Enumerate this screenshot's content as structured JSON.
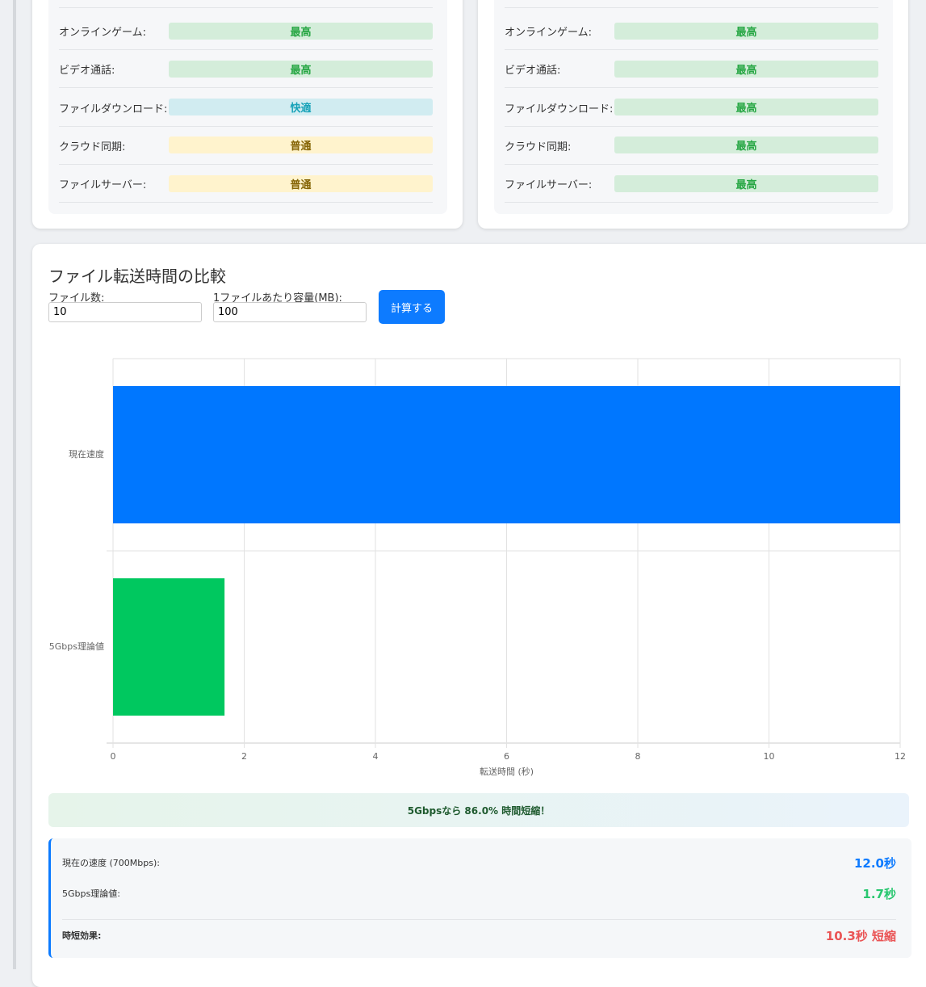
{
  "cards": [
    {
      "rows": [
        {
          "label": "オンラインゲーム:",
          "rating": "最高",
          "color": "#28a745",
          "background": "#d4edda"
        },
        {
          "label": "ビデオ通話:",
          "rating": "最高",
          "color": "#28a745",
          "background": "#d4edda"
        },
        {
          "label": "ファイルダウンロード:",
          "rating": "快適",
          "color": "#17a2b8",
          "background": "#d1ecf1"
        },
        {
          "label": "クラウド同期:",
          "rating": "普通",
          "color": "#856404",
          "background": "#fff3cd"
        },
        {
          "label": "ファイルサーバー:",
          "rating": "普通",
          "color": "#856404",
          "background": "#fff3cd"
        }
      ]
    },
    {
      "rows": [
        {
          "label": "オンラインゲーム:",
          "rating": "最高",
          "color": "#28a745",
          "background": "#d4edda"
        },
        {
          "label": "ビデオ通話:",
          "rating": "最高",
          "color": "#28a745",
          "background": "#d4edda"
        },
        {
          "label": "ファイルダウンロード:",
          "rating": "最高",
          "color": "#28a745",
          "background": "#d4edda"
        },
        {
          "label": "クラウド同期:",
          "rating": "最高",
          "color": "#28a745",
          "background": "#d4edda"
        },
        {
          "label": "ファイルサーバー:",
          "rating": "最高",
          "color": "#28a745",
          "background": "#d4edda"
        }
      ]
    }
  ],
  "comparison": {
    "title": "ファイル転送時間の比較",
    "inputs": [
      {
        "label": "ファイル数:",
        "value": "10"
      },
      {
        "label": "1ファイルあたり容量(MB):",
        "value": "100"
      }
    ],
    "button": "計算する",
    "banner": "5Gbpsなら 86.0% 時間短縮！",
    "results": [
      {
        "label": "現在の速度 (700Mbps):",
        "value": "12.0秒",
        "color": "#0d7bff"
      },
      {
        "label": "5Gbps理論値:",
        "value": "1.7秒",
        "color": "#28c76f"
      },
      {
        "label": "時短効果:",
        "value": "10.3秒 短縮",
        "color": "#ea5455"
      }
    ]
  },
  "chart_data": {
    "type": "barh",
    "categories": [
      "現在速度",
      "5Gbps理論値"
    ],
    "values": [
      12.0,
      1.7
    ],
    "colors": [
      "#0077ff",
      "#00c85f"
    ],
    "x_label": "転送時間 (秒)",
    "xlim": [
      0,
      12
    ],
    "xticks": [
      0,
      2,
      4,
      6,
      8,
      10,
      12
    ],
    "grid": true
  }
}
